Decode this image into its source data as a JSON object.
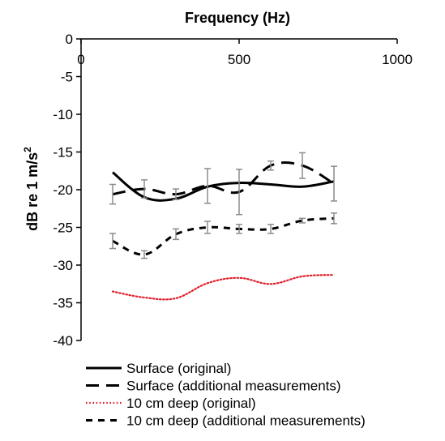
{
  "chart_data": {
    "type": "line",
    "title": "",
    "xlabel": "Frequency (Hz)",
    "ylabel": "dB re 1 m/s",
    "ylabel_superscript": "2",
    "xlim": [
      0,
      1000
    ],
    "ylim": [
      -40,
      0
    ],
    "x_axis_position": "top",
    "x_ticks": [
      0,
      500,
      1000
    ],
    "y_ticks": [
      0,
      -5,
      -10,
      -15,
      -20,
      -25,
      -30,
      -35,
      -40
    ],
    "grid": false,
    "legend_position": "bottom",
    "series": [
      {
        "name": "Surface (original)",
        "style": "solid",
        "color": "#000000",
        "x": [
          100,
          200,
          300,
          400,
          500,
          600,
          700,
          800
        ],
        "y": [
          -17.7,
          -21.0,
          -21.2,
          -19.6,
          -19.1,
          -19.3,
          -19.6,
          -18.9
        ],
        "error_bars": false
      },
      {
        "name": "Surface (additional measurements)",
        "style": "long-dash",
        "color": "#000000",
        "x": [
          100,
          200,
          300,
          400,
          500,
          600,
          700,
          800
        ],
        "y": [
          -20.6,
          -19.9,
          -20.6,
          -19.5,
          -20.3,
          -16.8,
          -16.8,
          -19.2
        ],
        "error_bars": true,
        "errors": [
          1.3,
          1.2,
          0.7,
          2.3,
          3.0,
          0.6,
          1.7,
          2.3
        ]
      },
      {
        "name": "10 cm deep (original)",
        "style": "dotted",
        "color": "#e0202a",
        "x": [
          100,
          200,
          300,
          400,
          500,
          600,
          700,
          800
        ],
        "y": [
          -33.5,
          -34.3,
          -34.4,
          -32.4,
          -31.7,
          -32.5,
          -31.5,
          -31.3
        ],
        "error_bars": false
      },
      {
        "name": "10 cm deep (additional measurements)",
        "style": "short-dash",
        "color": "#000000",
        "x": [
          100,
          200,
          300,
          400,
          500,
          600,
          700,
          800
        ],
        "y": [
          -26.8,
          -28.6,
          -25.9,
          -25.0,
          -25.2,
          -25.2,
          -24.1,
          -23.8
        ],
        "error_bars": true,
        "errors": [
          1.0,
          0.5,
          0.7,
          0.8,
          0.6,
          0.6,
          0.3,
          0.7
        ]
      }
    ],
    "error_bar_color": "#8c8c8c"
  }
}
